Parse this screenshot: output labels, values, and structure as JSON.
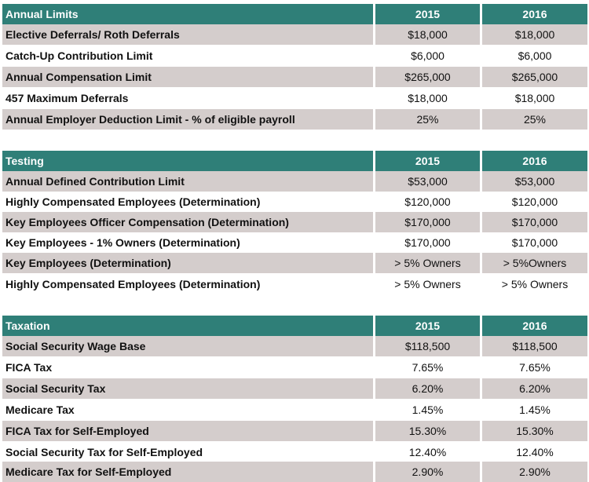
{
  "sections": [
    {
      "title": "Annual Limits",
      "years": [
        "2015",
        "2016"
      ],
      "rows": [
        {
          "label": "Elective Deferrals/ Roth Deferrals",
          "y2015": "$18,000",
          "y2016": "$18,000"
        },
        {
          "label": "Catch-Up Contribution Limit",
          "y2015": "$6,000",
          "y2016": "$6,000"
        },
        {
          "label": "Annual Compensation Limit",
          "y2015": "$265,000",
          "y2016": "$265,000"
        },
        {
          "label": "457 Maximum Deferrals",
          "y2015": "$18,000",
          "y2016": "$18,000"
        },
        {
          "label": "Annual Employer Deduction Limit - % of eligible payroll",
          "y2015": "25%",
          "y2016": "25%"
        }
      ]
    },
    {
      "title": "Testing",
      "years": [
        "2015",
        "2016"
      ],
      "rows": [
        {
          "label": "Annual Defined Contribution Limit",
          "y2015": "$53,000",
          "y2016": "$53,000"
        },
        {
          "label": "Highly Compensated Employees (Determination)",
          "y2015": "$120,000",
          "y2016": "$120,000"
        },
        {
          "label": "Key Employees Officer Compensation (Determination)",
          "y2015": "$170,000",
          "y2016": "$170,000"
        },
        {
          "label": "Key Employees - 1% Owners (Determination)",
          "y2015": "$170,000",
          "y2016": "$170,000"
        },
        {
          "label": "Key Employees (Determination)",
          "y2015": "> 5% Owners",
          "y2016": "> 5%Owners"
        },
        {
          "label": "Highly Compensated Employees (Determination)",
          "y2015": "> 5% Owners",
          "y2016": "> 5% Owners"
        }
      ]
    },
    {
      "title": "Taxation",
      "years": [
        "2015",
        "2016"
      ],
      "rows": [
        {
          "label": "Social Security Wage Base",
          "y2015": "$118,500",
          "y2016": "$118,500"
        },
        {
          "label": "FICA Tax",
          "y2015": "7.65%",
          "y2016": "7.65%"
        },
        {
          "label": "Social Security Tax",
          "y2015": "6.20%",
          "y2016": "6.20%"
        },
        {
          "label": "Medicare Tax",
          "y2015": "1.45%",
          "y2016": "1.45%"
        },
        {
          "label": "FICA Tax for Self-Employed",
          "y2015": "15.30%",
          "y2016": "15.30%"
        },
        {
          "label": "Social Security Tax for Self-Employed",
          "y2015": "12.40%",
          "y2016": "12.40%"
        },
        {
          "label": "Medicare Tax for Self-Employed",
          "y2015": "2.90%",
          "y2016": "2.90%"
        }
      ]
    }
  ]
}
